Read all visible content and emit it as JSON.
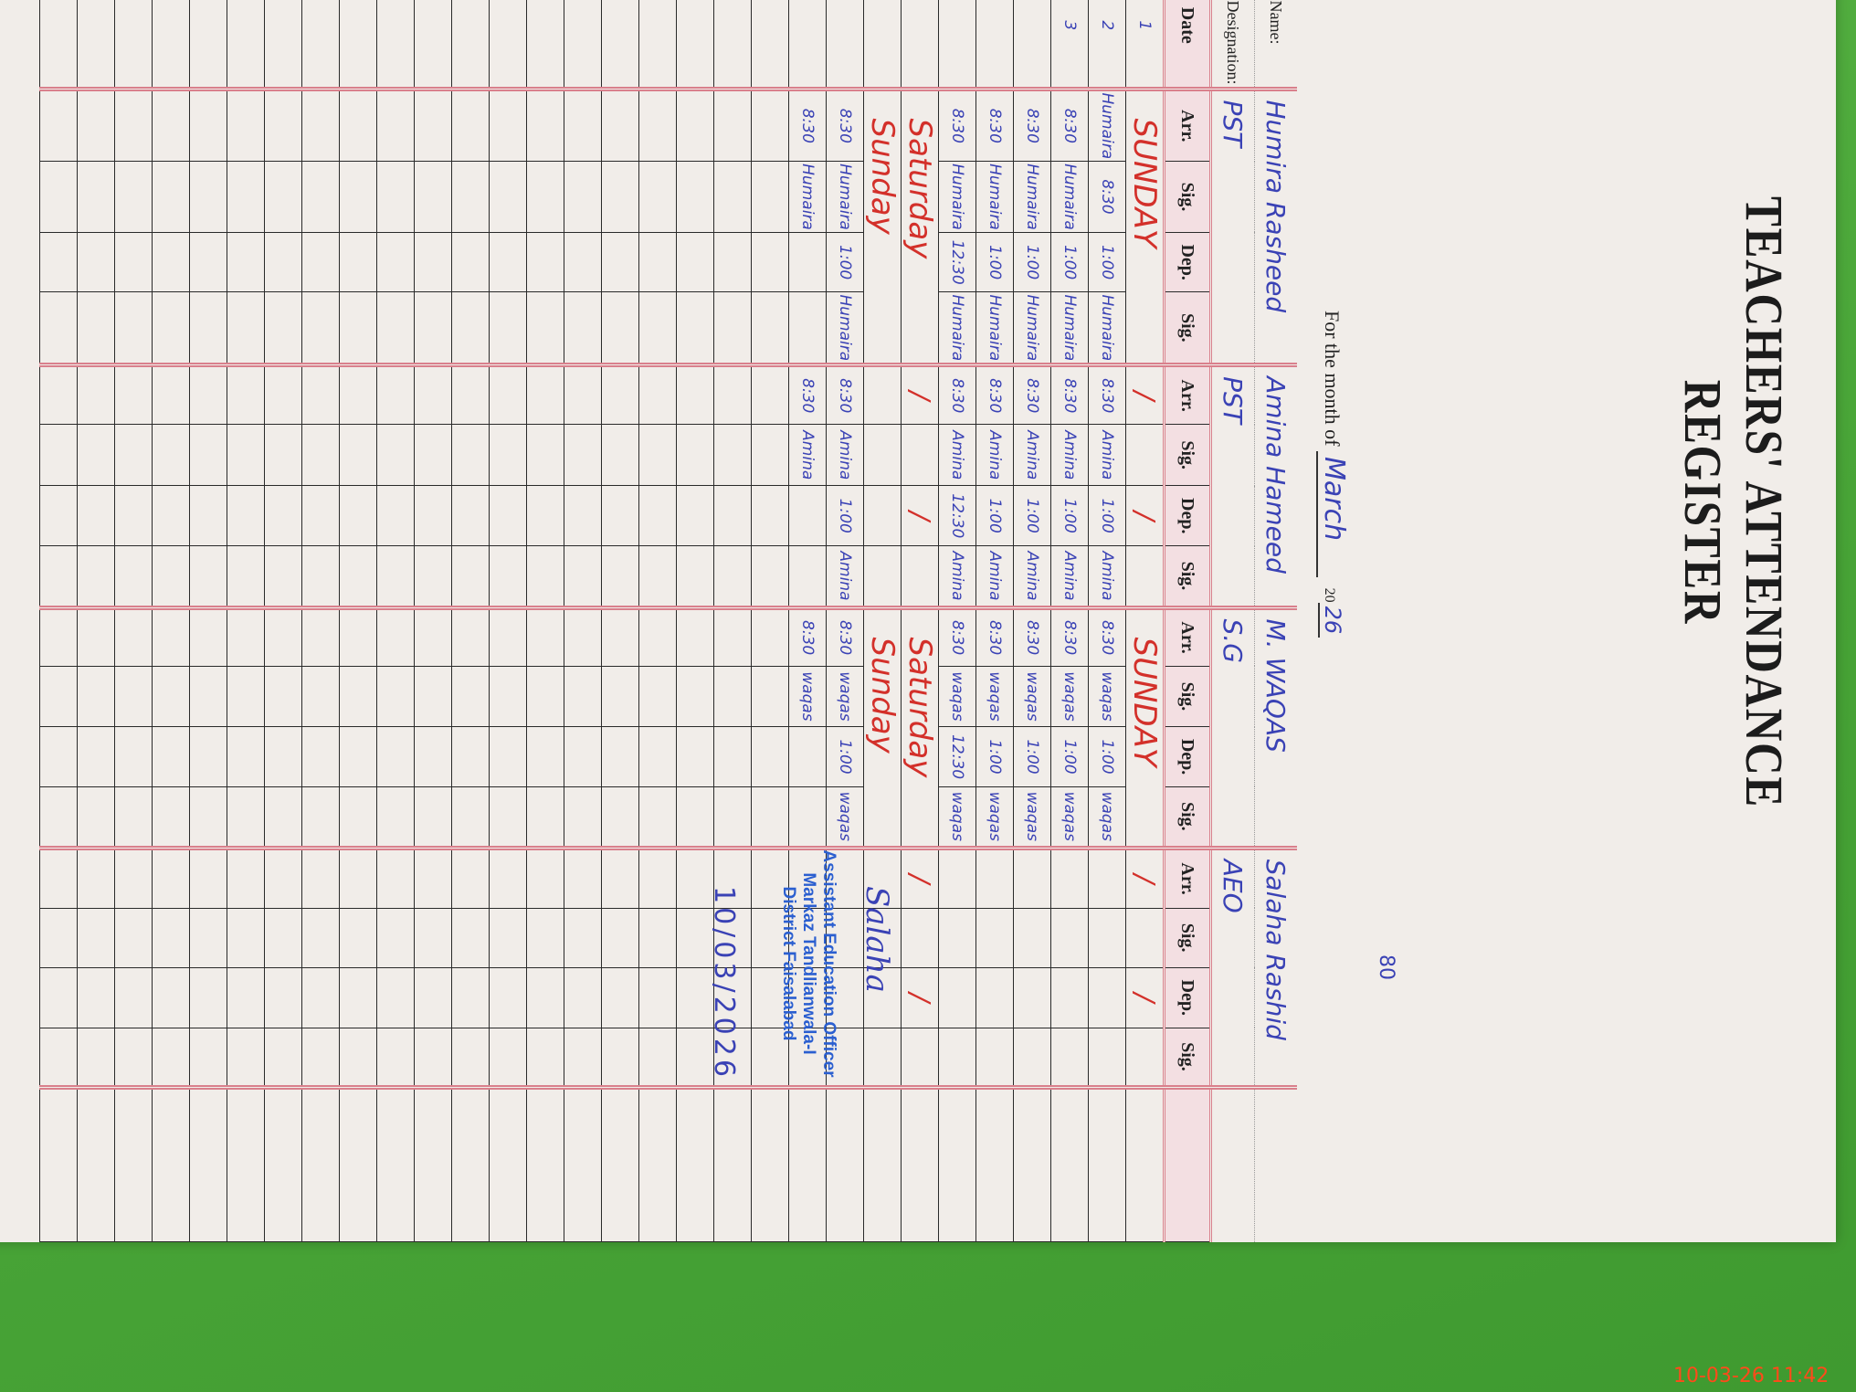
{
  "register": {
    "title": "TEACHERS' ATTENDANCE REGISTER",
    "month_prefix": "For the month of",
    "month": "March",
    "year_prefix": "20",
    "year": "26",
    "page_number": "80",
    "name_label": "Name:",
    "designation_label": "Designation:",
    "date_label": "Date",
    "column_labels": [
      "Arr.",
      "Sig.",
      "Dep.",
      "Sig."
    ],
    "teachers": [
      {
        "name": "Humira Rasheed",
        "designation": "PST"
      },
      {
        "name": "Amina Hameed",
        "designation": "PST"
      },
      {
        "name": "M. WAQAS",
        "designation": "S.G"
      },
      {
        "name": "Salaha Rashid",
        "designation": "AEO"
      }
    ],
    "rows": [
      {
        "date": "1",
        "groups": [
          {
            "note": "SUNDAY"
          },
          {
            "cells": [
              "/",
              "",
              "/",
              ""
            ]
          },
          {
            "note": "SUNDAY"
          },
          {
            "cells": [
              "/",
              "",
              "/",
              ""
            ]
          }
        ]
      },
      {
        "date": "2",
        "groups": [
          {
            "cells": [
              "Humaira",
              "8:30",
              "1:00",
              "Humaira"
            ]
          },
          {
            "cells": [
              "8:30",
              "Amina",
              "1:00",
              "Amina"
            ]
          },
          {
            "cells": [
              "8:30",
              "waqas",
              "1:00",
              "waqas"
            ]
          },
          {
            "cells": [
              "",
              "",
              "",
              ""
            ]
          }
        ]
      },
      {
        "date": "3",
        "groups": [
          {
            "cells": [
              "8:30",
              "Humaira",
              "1:00",
              "Humaira"
            ]
          },
          {
            "cells": [
              "8:30",
              "Amina",
              "1:00",
              "Amina"
            ]
          },
          {
            "cells": [
              "8:30",
              "waqas",
              "1:00",
              "waqas"
            ]
          },
          {
            "cells": [
              "",
              "",
              "",
              ""
            ]
          }
        ]
      },
      {
        "date": "",
        "groups": [
          {
            "cells": [
              "8:30",
              "Humaira",
              "1:00",
              "Humaira"
            ]
          },
          {
            "cells": [
              "8:30",
              "Amina",
              "1:00",
              "Amina"
            ]
          },
          {
            "cells": [
              "8:30",
              "waqas",
              "1:00",
              "waqas"
            ]
          },
          {
            "cells": [
              "",
              "",
              "",
              ""
            ]
          }
        ]
      },
      {
        "date": "",
        "groups": [
          {
            "cells": [
              "8:30",
              "Humaira",
              "1:00",
              "Humaira"
            ]
          },
          {
            "cells": [
              "8:30",
              "Amina",
              "1:00",
              "Amina"
            ]
          },
          {
            "cells": [
              "8:30",
              "waqas",
              "1:00",
              "waqas"
            ]
          },
          {
            "cells": [
              "",
              "",
              "",
              ""
            ]
          }
        ]
      },
      {
        "date": "",
        "groups": [
          {
            "cells": [
              "8:30",
              "Humaira",
              "12:30",
              "Humaira"
            ]
          },
          {
            "cells": [
              "8:30",
              "Amina",
              "12:30",
              "Amina"
            ]
          },
          {
            "cells": [
              "8:30",
              "waqas",
              "12:30",
              "waqas"
            ]
          },
          {
            "cells": [
              "",
              "",
              "",
              ""
            ]
          }
        ]
      },
      {
        "date": "",
        "groups": [
          {
            "note": "Saturday"
          },
          {
            "cells": [
              "/",
              "",
              "/",
              ""
            ]
          },
          {
            "note": "Saturday"
          },
          {
            "cells": [
              "/",
              "",
              "/",
              ""
            ]
          }
        ]
      },
      {
        "date": "",
        "groups": [
          {
            "note": "Sunday"
          },
          {
            "cells": [
              "",
              "",
              "",
              ""
            ]
          },
          {
            "note": "Sunday"
          },
          {
            "cells": [
              "",
              "",
              "",
              ""
            ]
          }
        ]
      },
      {
        "date": "",
        "groups": [
          {
            "cells": [
              "8:30",
              "Humaira",
              "1:00",
              "Humaira"
            ]
          },
          {
            "cells": [
              "8:30",
              "Amina",
              "1:00",
              "Amina"
            ]
          },
          {
            "cells": [
              "8:30",
              "waqas",
              "1:00",
              "waqas"
            ]
          },
          {
            "cells": [
              "",
              "",
              "",
              ""
            ]
          }
        ]
      },
      {
        "date": "",
        "groups": [
          {
            "cells": [
              "8:30",
              "Humaira",
              "",
              ""
            ]
          },
          {
            "cells": [
              "8:30",
              "Amina",
              "",
              ""
            ]
          },
          {
            "cells": [
              "8:30",
              "waqas",
              "",
              ""
            ]
          },
          {
            "cells": [
              "",
              "",
              "",
              ""
            ]
          }
        ]
      }
    ],
    "signoff": {
      "signature": "Salaha",
      "stamp_lines": [
        "Assistant Education Officer",
        "Markaz Tandlianwala-I",
        "District Faisalabad"
      ],
      "date": "10/03/2026"
    }
  },
  "camera_timestamp": "10-03-26  11:42",
  "colors": {
    "ink_blue": "#3a42b5",
    "ink_red": "#d3302a",
    "rule_pink": "#d9808c",
    "stamp_blue": "#2b5fd0",
    "tablecloth_green": "#47a336"
  }
}
